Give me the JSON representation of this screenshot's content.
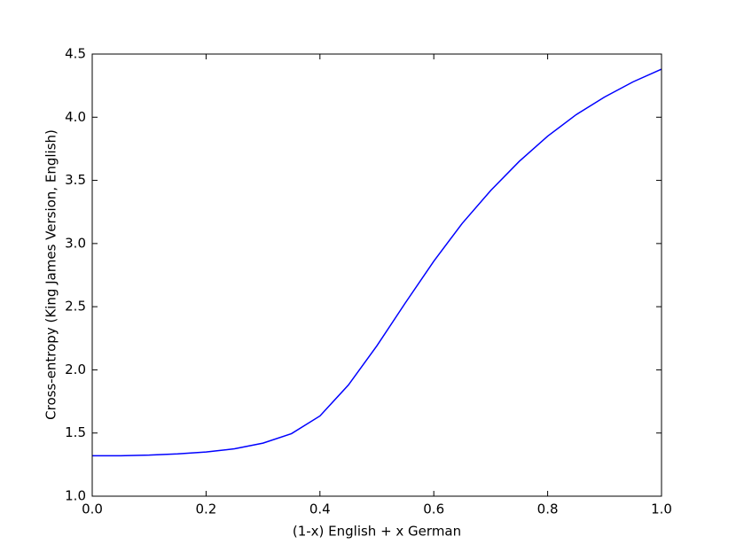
{
  "chart_data": {
    "type": "line",
    "x_label": "(1-x) English  +  x German",
    "y_label": "Cross-entropy (King James Version, English)",
    "x": [
      0,
      0.05,
      0.1,
      0.15,
      0.2,
      0.25,
      0.3,
      0.35,
      0.4,
      0.45,
      0.5,
      0.55,
      0.6,
      0.65,
      0.7,
      0.75,
      0.8,
      0.85,
      0.9,
      0.95,
      1.0
    ],
    "series": [
      {
        "color": "#0000ff",
        "values": [
          1.32,
          1.32,
          1.325,
          1.335,
          1.35,
          1.375,
          1.42,
          1.495,
          1.635,
          1.88,
          2.19,
          2.53,
          2.86,
          3.16,
          3.42,
          3.65,
          3.85,
          4.02,
          4.16,
          4.28,
          4.38
        ]
      }
    ],
    "xlim": [
      0,
      1
    ],
    "ylim": [
      1,
      4.5
    ],
    "xticks": [
      {
        "value": 0,
        "label": "0.0"
      },
      0.2,
      0.4,
      0.6,
      0.8,
      {
        "value": 1,
        "label": "1.0"
      }
    ],
    "yticks": [
      {
        "value": 1,
        "label": "1.0"
      },
      1.5,
      {
        "value": 2,
        "label": "2.0"
      },
      2.5,
      {
        "value": 3,
        "label": "3.0"
      },
      3.5,
      {
        "value": 4,
        "label": "4.0"
      },
      4.5
    ],
    "grid": false
  }
}
